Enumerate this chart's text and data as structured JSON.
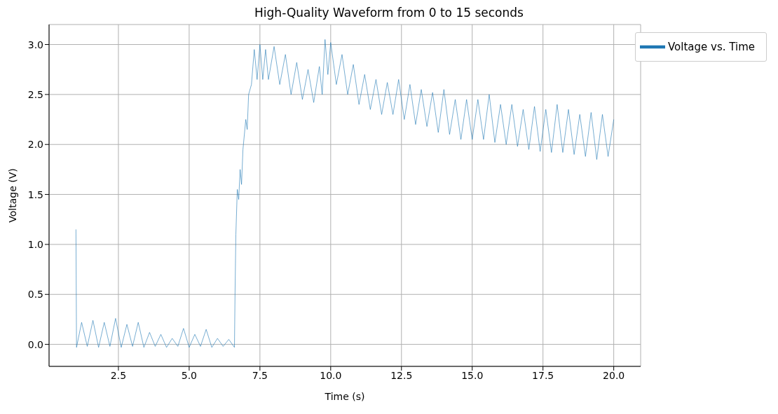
{
  "chart_data": {
    "type": "line",
    "title": "High-Quality Waveform from 0 to 15 seconds",
    "xlabel": "Time (s)",
    "ylabel": "Voltage (V)",
    "xlim": [
      0.05,
      20.95
    ],
    "xticks": [
      2.5,
      {
        "value": 5,
        "label": "5.0"
      },
      7.5,
      {
        "value": 10,
        "label": "10.0"
      },
      12.5,
      {
        "value": 15,
        "label": "15.0"
      },
      17.5,
      {
        "value": 20,
        "label": "20.0"
      }
    ],
    "ylim": [
      -0.22,
      3.2
    ],
    "yticks": [
      {
        "value": 0,
        "label": "0.0"
      },
      0.5,
      {
        "value": 1,
        "label": "1.0"
      },
      1.5,
      {
        "value": 2,
        "label": "2.0"
      },
      2.5,
      {
        "value": 3,
        "label": "3.0"
      }
    ],
    "grid": true,
    "legend": "top right",
    "marker": "none",
    "line_style": "solid",
    "series": [
      {
        "name": "Voltage vs. Time",
        "color": "#1f77b4",
        "x": [
          1.0,
          1.02,
          1.2,
          1.4,
          1.6,
          1.8,
          2.0,
          2.2,
          2.4,
          2.6,
          2.8,
          3.0,
          3.2,
          3.4,
          3.6,
          3.8,
          4.0,
          4.2,
          4.4,
          4.6,
          4.8,
          5.0,
          5.2,
          5.4,
          5.6,
          5.8,
          6.0,
          6.2,
          6.4,
          6.6,
          6.62,
          6.65,
          6.7,
          6.75,
          6.8,
          6.85,
          6.9,
          7.0,
          7.05,
          7.1,
          7.2,
          7.3,
          7.4,
          7.5,
          7.6,
          7.7,
          7.8,
          8.0,
          8.2,
          8.4,
          8.6,
          8.8,
          9.0,
          9.2,
          9.4,
          9.6,
          9.7,
          9.8,
          9.9,
          10.0,
          10.2,
          10.4,
          10.6,
          10.8,
          11.0,
          11.2,
          11.4,
          11.6,
          11.8,
          12.0,
          12.2,
          12.4,
          12.6,
          12.8,
          13.0,
          13.2,
          13.4,
          13.6,
          13.8,
          14.0,
          14.2,
          14.4,
          14.6,
          14.8,
          15.0,
          15.2,
          15.4,
          15.6,
          15.8,
          16.0,
          16.2,
          16.4,
          16.6,
          16.8,
          17.0,
          17.2,
          17.4,
          17.6,
          17.8,
          18.0,
          18.2,
          18.4,
          18.6,
          18.8,
          19.0,
          19.2,
          19.4,
          19.6,
          19.8,
          20.0
        ],
        "values": [
          1.15,
          -0.03,
          0.22,
          -0.02,
          0.24,
          -0.03,
          0.22,
          -0.02,
          0.26,
          -0.03,
          0.2,
          -0.02,
          0.22,
          -0.03,
          0.12,
          -0.02,
          0.1,
          -0.03,
          0.06,
          -0.02,
          0.16,
          -0.03,
          0.1,
          -0.02,
          0.15,
          -0.03,
          0.06,
          -0.02,
          0.05,
          -0.03,
          0.5,
          1.1,
          1.55,
          1.45,
          1.75,
          1.6,
          1.95,
          2.25,
          2.15,
          2.5,
          2.6,
          2.95,
          2.65,
          3.0,
          2.65,
          2.95,
          2.65,
          2.98,
          2.6,
          2.9,
          2.5,
          2.82,
          2.45,
          2.75,
          2.42,
          2.78,
          2.5,
          3.05,
          2.7,
          3.02,
          2.6,
          2.9,
          2.5,
          2.8,
          2.4,
          2.7,
          2.35,
          2.65,
          2.3,
          2.62,
          2.3,
          2.65,
          2.25,
          2.6,
          2.2,
          2.55,
          2.18,
          2.52,
          2.12,
          2.55,
          2.1,
          2.45,
          2.05,
          2.45,
          2.05,
          2.45,
          2.05,
          2.5,
          2.02,
          2.4,
          2.0,
          2.4,
          1.98,
          2.35,
          1.95,
          2.38,
          1.93,
          2.35,
          1.92,
          2.4,
          1.92,
          2.35,
          1.9,
          2.3,
          1.88,
          2.32,
          1.85,
          2.3,
          1.88,
          2.25
        ]
      }
    ]
  }
}
